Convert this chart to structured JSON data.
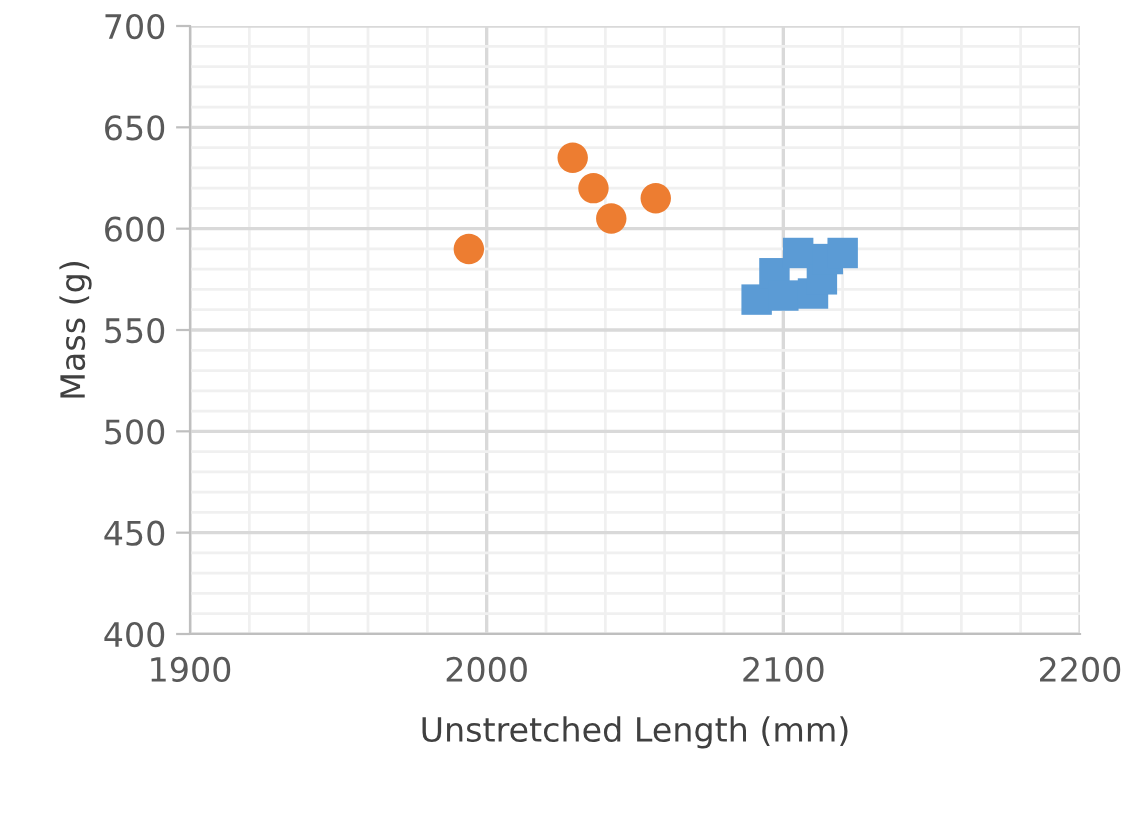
{
  "chart_data": {
    "type": "scatter",
    "xlabel": "Unstretched Length (mm)",
    "ylabel": "Mass (g)",
    "xlim": [
      1900,
      2200
    ],
    "xticks": [
      1900,
      2000,
      2100,
      2200
    ],
    "ylim": [
      400,
      700
    ],
    "yticks": [
      400,
      450,
      500,
      550,
      600,
      650,
      700
    ],
    "grid": true,
    "series": [
      {
        "color": "#5b9bd5",
        "marker": "square",
        "x": [
          2091,
          2097,
          2100,
          2105,
          2110,
          2113,
          2115,
          2120
        ],
        "values": [
          565,
          578,
          567,
          588,
          568,
          575,
          585,
          588
        ]
      },
      {
        "color": "#ed7d31",
        "marker": "circle",
        "x": [
          1994,
          2029,
          2036,
          2042,
          2057
        ],
        "values": [
          590,
          635,
          620,
          605,
          615
        ]
      }
    ]
  }
}
